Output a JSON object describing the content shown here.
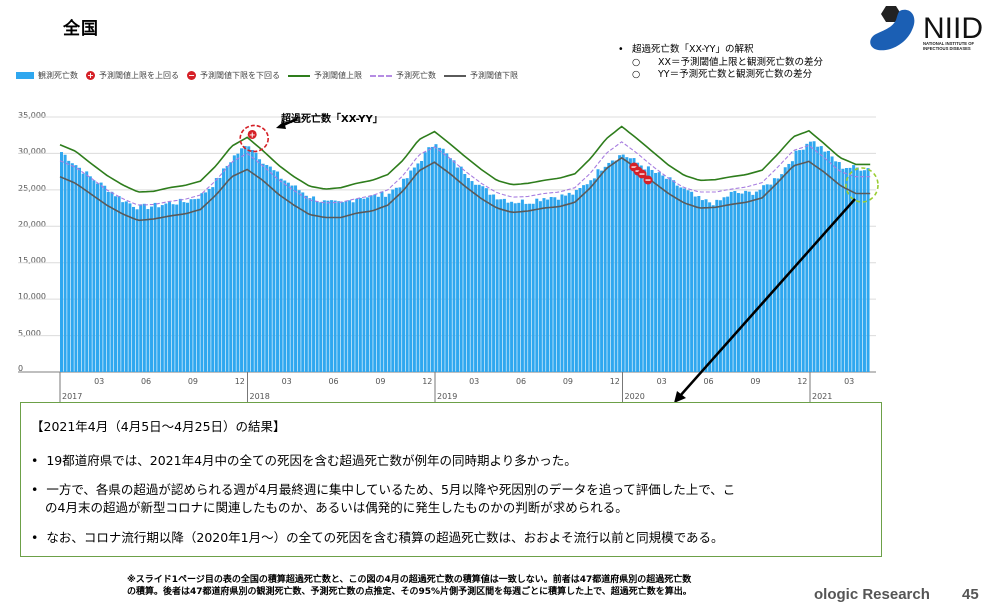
{
  "slide": {
    "title": "全国",
    "page_number": "45",
    "brand_fragment": "ologic Research",
    "logo": {
      "text": "NIID",
      "subtitle_line1": "NATIONAL INSTITUTE OF",
      "subtitle_line2": "INFECTIOUS DISEASES"
    }
  },
  "legend": {
    "items": [
      {
        "label": "観測死亡数",
        "icon": "bar-swatch",
        "color": "#2fa7ef"
      },
      {
        "label": "予測閾値上限を上回る",
        "icon": "plus-circle-icon",
        "color": "#d52027"
      },
      {
        "label": "予測閾値下限を下回る",
        "icon": "minus-circle-icon",
        "color": "#d52027"
      },
      {
        "label": "予測閾値上限",
        "icon": "solid-line",
        "color": "#2e7d1c"
      },
      {
        "label": "予測死亡数",
        "icon": "dashed-line",
        "color": "#b58ce3"
      },
      {
        "label": "予測閾値下限",
        "icon": "solid-line",
        "color": "#5a5a5a"
      }
    ]
  },
  "interpretation": {
    "bullet": "•",
    "heading": "超過死亡数「XX-YY」の解釈",
    "sub_bullet": "○",
    "lines": [
      "XX＝予測閾値上限と観測死亡数の差分",
      "YY＝予測死亡数と観測死亡数の差分"
    ]
  },
  "annotation": {
    "callout_label": "超過死亡数「XX-YY」"
  },
  "results": {
    "heading": "【2021年4月（4月5日～4月25日）の結果】",
    "bullet": "•",
    "items": [
      {
        "lines": [
          "19都道府県では、2021年4月中の全ての死因を含む超過死亡数が例年の同時期より多かった。"
        ]
      },
      {
        "lines": [
          "一方で、各県の超過が認められる週が4月最終週に集中しているため、5月以降や死因別のデータを追って評価した上で、こ",
          "の4月末の超過が新型コロナに関連したものか、あるいは偶発的に発生したものかの判断が求められる。"
        ]
      },
      {
        "lines": [
          "なお、コロナ流行期以降（2020年1月～）の全ての死因を含む積算の超過死亡数は、おおよそ流行以前と同規模である。"
        ]
      }
    ]
  },
  "footnote": {
    "lines": [
      "※スライド1ページ目の表の全国の積算超過死亡数と、この図の4月の超過死亡数の積算値は一致しない。前者は47都道府県別の超過死亡数",
      "の積算。後者は47都道府県別の観測死亡数、予測死亡数の点推定、その95%片側予測区間を毎週ごとに積算した上で、超過死亡数を算出。"
    ]
  },
  "chart_data": {
    "type": "bar",
    "title": "全国",
    "xlabel": "",
    "ylabel": "",
    "ylim": [
      0,
      35000
    ],
    "grid": true,
    "legend_position": "top",
    "y_ticks": [
      0,
      5000,
      10000,
      15000,
      20000,
      25000,
      30000,
      35000
    ],
    "y_tick_labels": [
      "0",
      "5,000",
      "10,000",
      "15,000",
      "20,000",
      "25,000",
      "30,000",
      "35,000"
    ],
    "x_month_ticks": [
      "03",
      "06",
      "09",
      "12"
    ],
    "x_years": [
      "2017",
      "2018",
      "2019",
      "2020",
      "2021"
    ],
    "frequency": "weekly",
    "range": "2017-01 to 2021-04",
    "monthly_categories": [
      "2017-01",
      "2017-02",
      "2017-03",
      "2017-04",
      "2017-05",
      "2017-06",
      "2017-07",
      "2017-08",
      "2017-09",
      "2017-10",
      "2017-11",
      "2017-12",
      "2018-01",
      "2018-02",
      "2018-03",
      "2018-04",
      "2018-05",
      "2018-06",
      "2018-07",
      "2018-08",
      "2018-09",
      "2018-10",
      "2018-11",
      "2018-12",
      "2019-01",
      "2019-02",
      "2019-03",
      "2019-04",
      "2019-05",
      "2019-06",
      "2019-07",
      "2019-08",
      "2019-09",
      "2019-10",
      "2019-11",
      "2019-12",
      "2020-01",
      "2020-02",
      "2020-03",
      "2020-04",
      "2020-05",
      "2020-06",
      "2020-07",
      "2020-08",
      "2020-09",
      "2020-10",
      "2020-11",
      "2020-12",
      "2021-01",
      "2021-02",
      "2021-03",
      "2021-04"
    ],
    "series": [
      {
        "name": "観測死亡数",
        "kind": "bar",
        "color": "#2fa7ef",
        "values": [
          30200,
          28300,
          26500,
          25100,
          23500,
          22600,
          22800,
          23200,
          23400,
          24300,
          26400,
          29500,
          31300,
          28800,
          26800,
          25300,
          24000,
          23200,
          23100,
          24000,
          24100,
          24600,
          26200,
          29100,
          31700,
          29000,
          27200,
          25200,
          24000,
          23400,
          23400,
          24000,
          24100,
          24600,
          26600,
          28900,
          29900,
          28600,
          27400,
          26300,
          24900,
          23500,
          23200,
          24600,
          24500,
          25200,
          27000,
          29800,
          31900,
          30300,
          28200,
          28000
        ]
      },
      {
        "name": "予測閾値上限",
        "kind": "line",
        "color": "#2e7d1c",
        "values": [
          31200,
          30300,
          28600,
          27000,
          25700,
          24700,
          24800,
          25300,
          25600,
          26200,
          28300,
          31000,
          32200,
          30400,
          28400,
          26800,
          25500,
          25100,
          25300,
          25900,
          26300,
          27100,
          29100,
          31900,
          33000,
          31300,
          29500,
          27800,
          26300,
          25700,
          25900,
          26300,
          26600,
          27200,
          29300,
          32000,
          33700,
          32000,
          30200,
          28400,
          27000,
          26300,
          26400,
          26800,
          27100,
          27700,
          29900,
          32300,
          33100,
          31300,
          29400,
          28500
        ]
      },
      {
        "name": "予測死亡数",
        "kind": "line-dashed",
        "color": "#b58ce3",
        "values": [
          29000,
          28100,
          26600,
          25000,
          23800,
          22900,
          23000,
          23400,
          23700,
          24300,
          26300,
          28800,
          30000,
          28300,
          26400,
          24900,
          23600,
          23200,
          23300,
          23800,
          24200,
          25000,
          27000,
          29800,
          30900,
          29300,
          27500,
          25900,
          24600,
          24000,
          24100,
          24500,
          24700,
          25300,
          27300,
          30000,
          31600,
          30000,
          28200,
          26600,
          25300,
          24700,
          24700,
          25100,
          25400,
          26000,
          28100,
          30400,
          31100,
          29400,
          27500,
          26800
        ]
      },
      {
        "name": "予測閾値下限",
        "kind": "line",
        "color": "#5a5a5a",
        "values": [
          26800,
          25900,
          24400,
          22900,
          21700,
          20800,
          21000,
          21400,
          21700,
          22300,
          24300,
          26800,
          27800,
          26300,
          24400,
          22900,
          21600,
          21200,
          21200,
          21800,
          22100,
          22900,
          24900,
          27600,
          28800,
          27200,
          25400,
          23800,
          22500,
          21900,
          22100,
          22500,
          22700,
          23300,
          25300,
          27900,
          29400,
          27900,
          26100,
          24500,
          23200,
          22500,
          22600,
          23000,
          23300,
          23900,
          26000,
          28300,
          28900,
          27400,
          25600,
          24500
        ]
      }
    ],
    "markers": [
      {
        "type": "above-upper-threshold",
        "symbol": "+",
        "period": "2018-01 (peak week)",
        "approx_value": 32500
      },
      {
        "type": "below-lower-threshold",
        "symbol": "−",
        "period": "2020-02",
        "count": 4
      }
    ],
    "annotations": [
      {
        "text": "超過死亡数「XX-YY」",
        "target": "2018-01 excess marker"
      },
      {
        "text": "(green dashed circle)",
        "target": "2021-04 latest weeks"
      }
    ]
  }
}
